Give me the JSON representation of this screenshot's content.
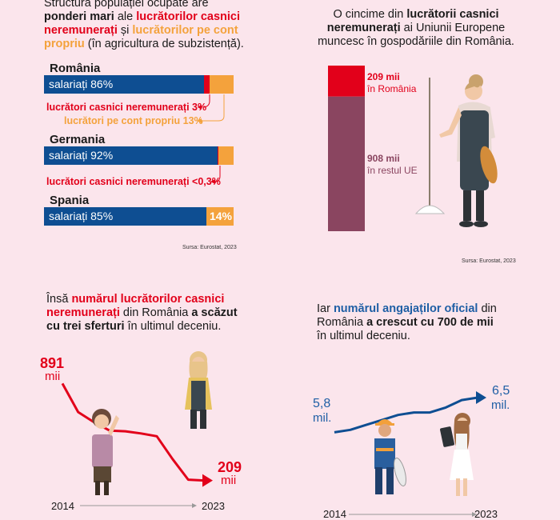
{
  "q1": {
    "intro_1": "Structura populației ocupate are",
    "intro_2a": "ponderi mari",
    "intro_2b": " ale ",
    "intro_2c": "lucrătorilor casnici",
    "intro_3a": "neremunerați",
    "intro_3b": " și ",
    "intro_3c": "lucrătorilor pe cont",
    "intro_4a": "propriu",
    "intro_4b": " (în agricultura de subzistență).",
    "source": "Sursa: Eurostat, 2023"
  },
  "q2": {
    "title_1": "O cincime din ",
    "title_1b": "lucrătorii casnici",
    "title_2a": "neremunerați",
    "title_2b": " ai Uniunii Europene",
    "title_3": "muncesc în gospodăriile din România.",
    "source": "Sursa: Eurostat, 2023"
  },
  "q3": {
    "t1a": "Însă ",
    "t1b": "numărul lucrătorilor casnici",
    "t2a": "neremunerați",
    "t2b": " din România ",
    "t2c": "a scăzut",
    "t3a": "cu trei sferturi",
    "t3b": " în ultimul deceniu."
  },
  "q4": {
    "t1a": "Iar ",
    "t1b": "numărul angajaților oficial",
    "t1c": " din",
    "t2a": "România ",
    "t2b": "a crescut cu 700 de mii",
    "t3": "în ultimul deceniu."
  },
  "colors": {
    "salariati": "#0e4e92",
    "casnici": "#e2001a",
    "cont_propriu": "#f4a23c",
    "restul_ue": "#8a4560",
    "background": "#fbe5ec"
  },
  "icons": [
    "woman-with-broom-icon",
    "woman-holding-paper-icon",
    "woman-with-apron-icon",
    "construction-worker-icon",
    "woman-with-tablet-icon",
    "arrow-right-icon"
  ],
  "chart_data": [
    {
      "type": "bar",
      "orientation": "horizontal-stacked",
      "categories": [
        "România",
        "Germania",
        "Spania"
      ],
      "series": [
        {
          "name": "salariați",
          "values": [
            86,
            92,
            85
          ]
        },
        {
          "name": "lucrători casnici neremunerați",
          "values": [
            3,
            0.3,
            0
          ]
        },
        {
          "name": "lucrători pe cont propriu",
          "values": [
            13,
            8,
            14
          ]
        }
      ],
      "labels": {
        "ro_salariati": "salariați 86%",
        "ro_casnici": "lucrători casnici neremunerați  3%",
        "ro_cont": "lucrători pe cont propriu  13%",
        "de_salariati": "salariați 92%",
        "de_casnici": "lucrători casnici neremunerați  <0,3%",
        "es_salariati": "salariați 85%",
        "es_cont": "14%"
      }
    },
    {
      "type": "bar",
      "orientation": "vertical-stacked",
      "categories": [
        "Uniunea Europeană"
      ],
      "series": [
        {
          "name": "în România",
          "values": [
            209
          ]
        },
        {
          "name": "în restul UE",
          "values": [
            908
          ]
        }
      ],
      "labels": {
        "ro_value": "209 mii",
        "ro_name": "în România",
        "rest_value": "908 mii",
        "rest_name": "în restul UE"
      }
    },
    {
      "type": "line",
      "x": [
        2014,
        2015,
        2016,
        2017,
        2018,
        2019,
        2020,
        2021,
        2022,
        2023
      ],
      "series": [
        {
          "name": "",
          "values": [
            891,
            690,
            620,
            560,
            555,
            540,
            520,
            360,
            215,
            209
          ]
        }
      ],
      "ylim": [
        100,
        1000
      ],
      "labels": {
        "start_value": "891",
        "start_unit": "mii",
        "end_value": "209",
        "end_unit": "mii",
        "x_start": "2014",
        "x_end": "2023"
      }
    },
    {
      "type": "line",
      "x": [
        2014,
        2015,
        2016,
        2017,
        2018,
        2019,
        2020,
        2021,
        2022,
        2023
      ],
      "series": [
        {
          "name": "",
          "values": [
            5.8,
            5.85,
            5.95,
            6.05,
            6.15,
            6.2,
            6.2,
            6.3,
            6.45,
            6.5
          ]
        }
      ],
      "ylim": [
        5.0,
        7.5
      ],
      "labels": {
        "start_value": "5,8",
        "start_unit": "mil.",
        "end_value": "6,5",
        "end_unit": "mil.",
        "x_start": "2014",
        "x_end": "2023"
      }
    }
  ]
}
